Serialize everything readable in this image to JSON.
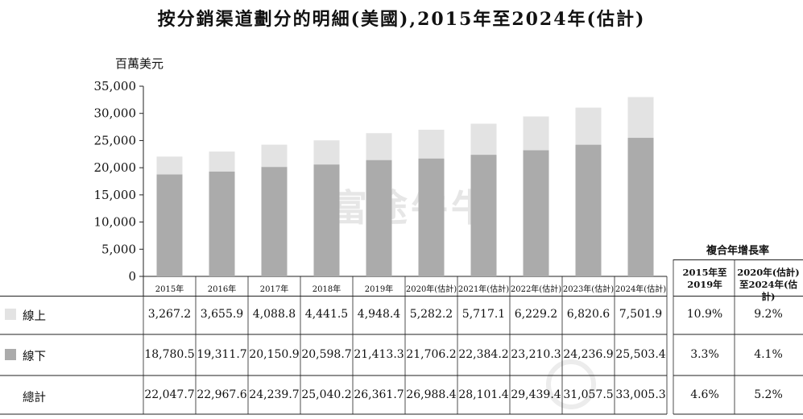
{
  "title": "按分銷渠道劃分的明細(美國),2015年至2024年(估計)",
  "unit": "百萬美元",
  "watermark": "富途牛牛",
  "colors": {
    "online": "#e3e3e3",
    "offline": "#ababab",
    "axis": "#222222"
  },
  "chart_data": {
    "type": "bar",
    "stacked": true,
    "categories": [
      "2015年",
      "2016年",
      "2017年",
      "2018年",
      "2019年",
      "2020年(估計)",
      "2021年(估計)",
      "2022年(估計)",
      "2023年(估計)",
      "2024年(估計)"
    ],
    "series": [
      {
        "name": "線下",
        "values": [
          18780.5,
          19311.7,
          20150.9,
          20598.7,
          21413.3,
          21706.2,
          22384.2,
          23210.3,
          24236.9,
          25503.4
        ]
      },
      {
        "name": "線上",
        "values": [
          3267.2,
          3655.9,
          4088.8,
          4441.5,
          4948.4,
          5282.2,
          5717.1,
          6229.2,
          6820.6,
          7501.9
        ]
      }
    ],
    "ylim": [
      0,
      35000
    ],
    "yticks": [
      "0",
      "5,000",
      "10,000",
      "15,000",
      "20,000",
      "25,000",
      "30,000",
      "35,000"
    ],
    "ylabel": "百萬美元"
  },
  "table": {
    "rows": [
      {
        "label": "線上",
        "values": [
          "3,267.2",
          "3,655.9",
          "4,088.8",
          "4,441.5",
          "4,948.4",
          "5,282.2",
          "5,717.1",
          "6,229.2",
          "6,820.6",
          "7,501.9"
        ],
        "cagr": [
          "10.9%",
          "9.2%"
        ]
      },
      {
        "label": "線下",
        "values": [
          "18,780.5",
          "19,311.7",
          "20,150.9",
          "20,598.7",
          "21,413.3",
          "21,706.2",
          "22,384.2",
          "23,210.3",
          "24,236.9",
          "25,503.4"
        ],
        "cagr": [
          "3.3%",
          "4.1%"
        ]
      },
      {
        "label": "總計",
        "values": [
          "22,047.7",
          "22,967.6",
          "24,239.7",
          "25,040.2",
          "26,361.7",
          "26,988.4",
          "28,101.4",
          "29,439.4",
          "31,057.5",
          "33,005.3"
        ],
        "cagr": [
          "4.6%",
          "5.2%"
        ]
      }
    ]
  },
  "cagr": {
    "title": "複合年增長率",
    "col1": "2015年至2019年",
    "col2": "2020年(估計)至2024年(估計)"
  }
}
